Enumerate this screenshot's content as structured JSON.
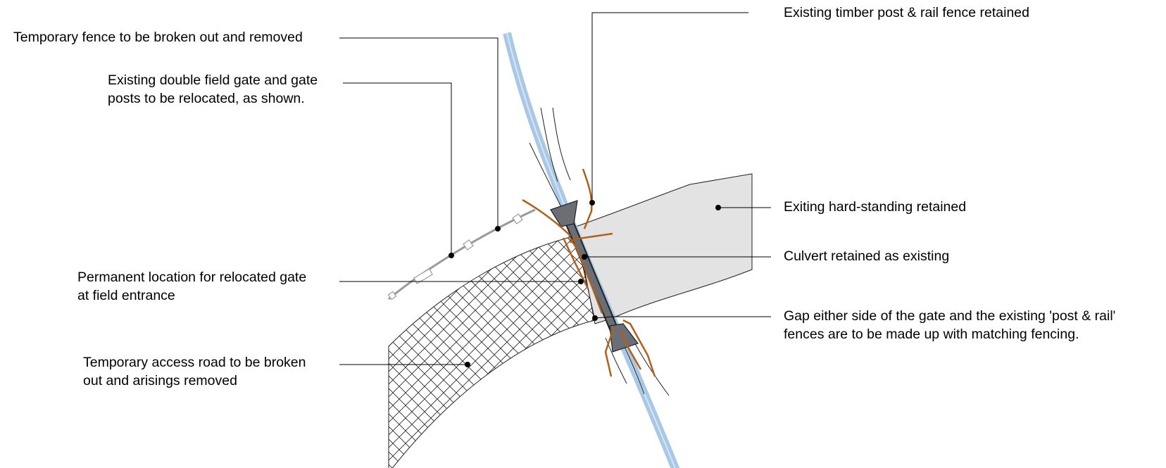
{
  "labels": {
    "temporary_fence": "Temporary fence to be broken out and removed",
    "gate_relocate_line1": "Existing double field gate and gate",
    "gate_relocate_line2": "posts to be relocated, as shown.",
    "permanent_gate_line1": "Permanent location for relocated gate",
    "permanent_gate_line2": "at field entrance",
    "temp_road_line1": "Temporary access road to be broken",
    "temp_road_line2": "out and arisings removed",
    "timber_fence": "Existing timber post & rail fence retained",
    "hard_standing": "Exiting hard-standing retained",
    "culvert": "Culvert retained as existing",
    "gap_line1": "Gap either side of the gate and the existing 'post & rail'",
    "gap_line2": "fences are to be made up with matching fencing."
  },
  "colors": {
    "watercourse": "#a9c8e6",
    "hard_standing_fill": "#e3e3e3",
    "fence_brown": "#b0601a",
    "temporary_fence_grey": "#9a9a9a",
    "culvert_dark": "#6b6f75",
    "leader": "#000000"
  }
}
